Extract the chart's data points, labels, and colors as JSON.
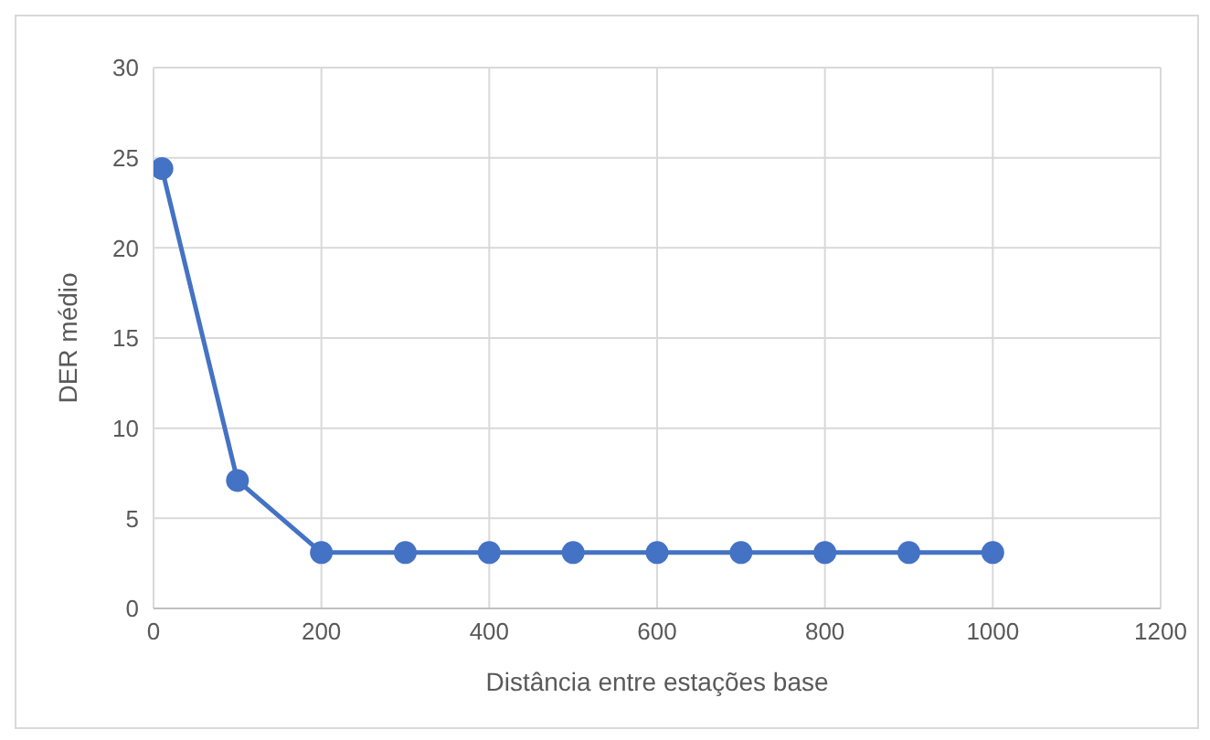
{
  "chart_data": {
    "type": "line",
    "xlabel": "Distância entre estações base",
    "ylabel": "DER médio",
    "x": [
      10,
      100,
      200,
      300,
      400,
      500,
      600,
      700,
      800,
      900,
      1000
    ],
    "series": [
      {
        "color": "#4472c4",
        "values": [
          24.4,
          7.1,
          3.1,
          3.1,
          3.1,
          3.1,
          3.1,
          3.1,
          3.1,
          3.1,
          3.1
        ]
      }
    ],
    "xlim": [
      0,
      1200
    ],
    "xticks": [
      0,
      200,
      400,
      600,
      800,
      1000,
      1200
    ],
    "ylim": [
      0,
      30
    ],
    "yticks": [
      0,
      5,
      10,
      15,
      20,
      25,
      30
    ],
    "grid": true,
    "marker": "circle",
    "line_style": "solid",
    "legend": false
  }
}
